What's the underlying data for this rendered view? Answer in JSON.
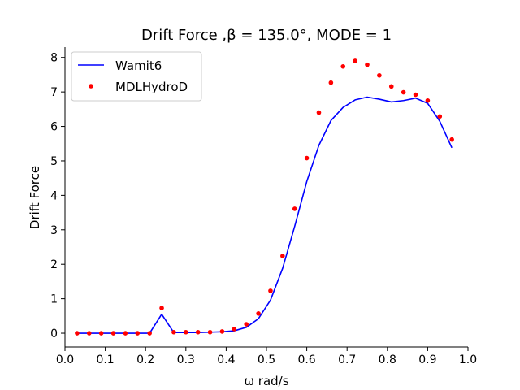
{
  "chart_data": {
    "type": "line",
    "title": "Drift Force ,β = 135.0°, MODE = 1",
    "xlabel": "ω rad/s",
    "ylabel": "Drift Force",
    "xlim": [
      0.0,
      1.0
    ],
    "ylim": [
      -0.4,
      8.3
    ],
    "xticks": [
      0.0,
      0.1,
      0.2,
      0.3,
      0.4,
      0.5,
      0.6,
      0.7,
      0.8,
      0.9,
      1.0
    ],
    "xtick_labels": [
      "0.0",
      "0.1",
      "0.2",
      "0.3",
      "0.4",
      "0.5",
      "0.6",
      "0.7",
      "0.8",
      "0.9",
      "1.0"
    ],
    "yticks": [
      0,
      1,
      2,
      3,
      4,
      5,
      6,
      7,
      8
    ],
    "ytick_labels": [
      "0",
      "1",
      "2",
      "3",
      "4",
      "5",
      "6",
      "7",
      "8"
    ],
    "grid": false,
    "legend_position": "top-left",
    "series": [
      {
        "name": "Wamit6",
        "style": "line",
        "color": "#0000ff",
        "x": [
          0.03,
          0.06,
          0.09,
          0.12,
          0.15,
          0.18,
          0.21,
          0.24,
          0.27,
          0.3,
          0.33,
          0.36,
          0.39,
          0.42,
          0.45,
          0.48,
          0.51,
          0.54,
          0.57,
          0.6,
          0.63,
          0.66,
          0.69,
          0.72,
          0.75,
          0.78,
          0.81,
          0.84,
          0.87,
          0.9,
          0.93,
          0.96
        ],
        "y": [
          0.0,
          0.0,
          0.0,
          0.0,
          0.0,
          0.0,
          0.0,
          0.55,
          0.02,
          0.02,
          0.02,
          0.03,
          0.04,
          0.07,
          0.17,
          0.42,
          0.96,
          1.88,
          3.1,
          4.4,
          5.45,
          6.17,
          6.55,
          6.77,
          6.85,
          6.79,
          6.71,
          6.75,
          6.82,
          6.67,
          6.15,
          5.38
        ]
      },
      {
        "name": "MDLHydroD",
        "style": "scatter",
        "color": "#ff0000",
        "x": [
          0.03,
          0.06,
          0.09,
          0.12,
          0.15,
          0.18,
          0.21,
          0.24,
          0.27,
          0.3,
          0.33,
          0.36,
          0.39,
          0.42,
          0.45,
          0.48,
          0.51,
          0.54,
          0.57,
          0.6,
          0.63,
          0.66,
          0.69,
          0.72,
          0.75,
          0.78,
          0.81,
          0.84,
          0.87,
          0.9,
          0.93,
          0.96
        ],
        "y": [
          0.0,
          0.0,
          0.0,
          0.0,
          0.0,
          0.0,
          0.0,
          0.73,
          0.03,
          0.03,
          0.03,
          0.03,
          0.05,
          0.12,
          0.26,
          0.57,
          1.23,
          2.24,
          3.61,
          5.08,
          6.4,
          7.27,
          7.74,
          7.9,
          7.79,
          7.48,
          7.16,
          6.99,
          6.92,
          6.75,
          6.29,
          5.62
        ]
      }
    ]
  }
}
